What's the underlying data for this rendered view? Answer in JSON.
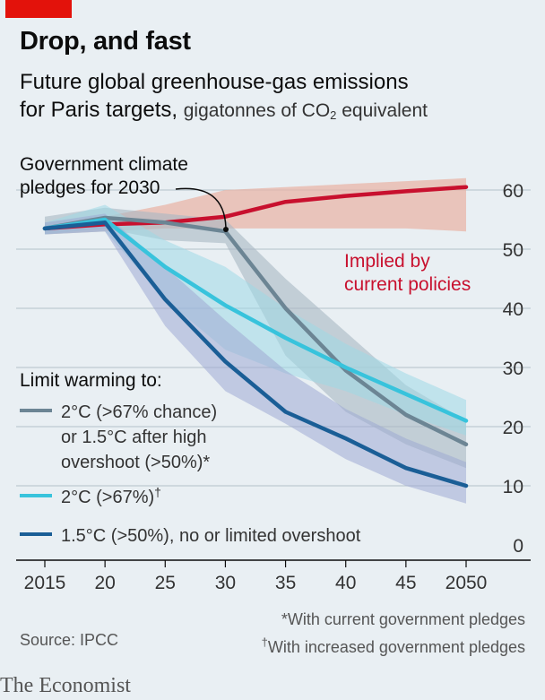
{
  "header": {
    "title": "Drop, and fast",
    "subtitle_main": "Future global greenhouse-gas emissions",
    "subtitle_line2": "for Paris targets,",
    "subtitle_unit_pre": "gigatonnes of CO",
    "subtitle_unit_sub": "2",
    "subtitle_unit_post": " equivalent"
  },
  "annotations": {
    "pledges_line1": "Government climate",
    "pledges_line2": "pledges for 2030",
    "current_line1": "Implied by",
    "current_line2": "current policies"
  },
  "legend": {
    "title": "Limit warming to:",
    "gray_line1": "2°C (>67% chance)",
    "gray_line2": "or 1.5°C after high",
    "gray_line3": "overshoot (>50%)*",
    "cyan_label": "2°C (>67%)",
    "cyan_mark": "†",
    "blue_label": "1.5°C (>50%), no or limited overshoot"
  },
  "footer": {
    "source": "Source: IPCC",
    "note1": "*With current government pledges",
    "note2_mark": "†",
    "note2": "With increased government pledges",
    "brand": "The Economist"
  },
  "chart_data": {
    "type": "line",
    "x": [
      2015,
      2020,
      2025,
      2030,
      2035,
      2040,
      2045,
      2050
    ],
    "x_tick_labels": [
      "2015",
      "20",
      "25",
      "30",
      "35",
      "40",
      "45",
      "2050"
    ],
    "y_ticks": [
      0,
      10,
      20,
      30,
      40,
      50,
      60
    ],
    "ylim": [
      0,
      64
    ],
    "grid": true,
    "y_axis_side": "right",
    "colors": {
      "current": "#c8102e",
      "gray": "#6c8594",
      "cyan": "#38c3dc",
      "blue": "#1a5e96",
      "current_band": "#e8b6a8",
      "gray_band": "#a8b8c3",
      "cyan_band": "#9fd8e6",
      "blue_band": "#9fa9d3"
    },
    "series": [
      {
        "key": "current",
        "x": [
          2015,
          2020,
          2025,
          2030,
          2035,
          2040,
          2045,
          2050
        ],
        "values": [
          53.5,
          54.2,
          54.5,
          55.5,
          58,
          59,
          59.8,
          60.5
        ],
        "band_low": [
          52.5,
          53,
          53.5,
          53.5,
          53.5,
          53.5,
          53.5,
          53
        ],
        "band_high": [
          54.5,
          55.5,
          57.5,
          60,
          60.5,
          61,
          61.5,
          62
        ]
      },
      {
        "key": "gray",
        "x": [
          2015,
          2020,
          2025,
          2030,
          2035,
          2040,
          2045,
          2050
        ],
        "values": [
          53.5,
          55.3,
          54.5,
          53,
          40,
          29.5,
          22,
          17
        ],
        "band_low": [
          52.5,
          53.5,
          51.5,
          51,
          32,
          22.5,
          17,
          13
        ],
        "band_high": [
          55.5,
          57,
          56,
          55,
          45,
          36,
          27,
          21
        ]
      },
      {
        "key": "cyan",
        "x": [
          2015,
          2020,
          2025,
          2030,
          2035,
          2040,
          2045,
          2050
        ],
        "values": [
          53.5,
          55,
          47,
          40.5,
          35,
          30,
          25.5,
          21
        ],
        "band_low": [
          52.5,
          53,
          41.5,
          33,
          29,
          26,
          22,
          18.5
        ],
        "band_high": [
          54.5,
          57.5,
          51.5,
          47,
          40,
          34,
          29,
          24.5
        ]
      },
      {
        "key": "blue",
        "x": [
          2015,
          2020,
          2025,
          2030,
          2035,
          2040,
          2045,
          2050
        ],
        "values": [
          53.5,
          54.5,
          41.5,
          31,
          22.5,
          18,
          13,
          10
        ],
        "band_low": [
          52.5,
          53,
          37,
          26,
          20.5,
          14.5,
          10,
          7
        ],
        "band_high": [
          54.5,
          56,
          47,
          38,
          29.5,
          23,
          18,
          14
        ]
      }
    ]
  }
}
